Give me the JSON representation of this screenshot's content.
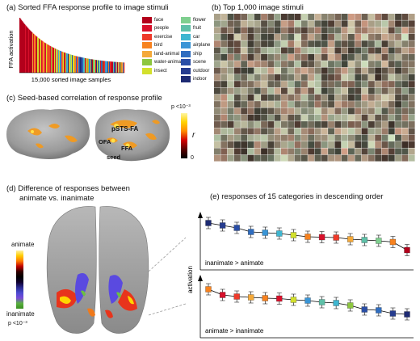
{
  "panel_a": {
    "title": "(a)  Sorted FFA response profile to image stimuli",
    "ylabel": "FFA activation",
    "xlabel": "15,000 sorted image samples",
    "legend": [
      {
        "label": "face",
        "color": "#b3001b"
      },
      {
        "label": "people",
        "color": "#d8102b"
      },
      {
        "label": "exercise",
        "color": "#ee3a2a"
      },
      {
        "label": "bird",
        "color": "#f7821f"
      },
      {
        "label": "land-animal",
        "color": "#f4a93a"
      },
      {
        "label": "water-animal",
        "color": "#8dc63f"
      },
      {
        "label": "insect",
        "color": "#d3e02c"
      },
      {
        "label": "flower",
        "color": "#7fcf8f"
      },
      {
        "label": "fruit",
        "color": "#5ec0a8"
      },
      {
        "label": "car",
        "color": "#3fb6d0"
      },
      {
        "label": "airplane",
        "color": "#3a95d6"
      },
      {
        "label": "ship",
        "color": "#2f6dc0"
      },
      {
        "label": "scene",
        "color": "#2a4ea6"
      },
      {
        "label": "outdoor",
        "color": "#263c8f"
      },
      {
        "label": "indoor",
        "color": "#1d2a73"
      }
    ]
  },
  "panel_b": {
    "title": "(b)  Top 1,000 image stimuli"
  },
  "panel_c": {
    "title": "(c)  Seed-based correlation of response profile",
    "colorbar_top": "p <10⁻³",
    "colorbar_r": "r",
    "colorbar_zero": "0",
    "labels": {
      "psts": "pSTS-FA",
      "ofa": "OFA",
      "ffa": "FFA",
      "seed": "seed"
    }
  },
  "panel_d": {
    "title_line1": "(d)  Difference of responses between",
    "title_line2": "animate vs. inanimate",
    "animate": "animate",
    "inanimate": "inanimate",
    "p": "p <10⁻³"
  },
  "panel_e": {
    "title": "(e)  responses of 15 categories in descending order",
    "ylabel": "activation",
    "top_label": "inanimate > animate",
    "bottom_label": "animate > inanimate",
    "top_colors": [
      "#1d2a73",
      "#263c8f",
      "#2a4ea6",
      "#2f6dc0",
      "#3a95d6",
      "#3fb6d0",
      "#d3e02c",
      "#f7821f",
      "#d8102b",
      "#ee3a2a",
      "#f4a93a",
      "#5ec0a8",
      "#7fcf8f",
      "#f7821f",
      "#b3001b"
    ],
    "top_values": [
      0.92,
      0.86,
      0.8,
      0.7,
      0.68,
      0.66,
      0.62,
      0.58,
      0.57,
      0.56,
      0.52,
      0.5,
      0.48,
      0.45,
      0.25
    ],
    "bottom_colors": [
      "#f7821f",
      "#d8102b",
      "#ee3a2a",
      "#f4a93a",
      "#f7821f",
      "#d8102b",
      "#d3e02c",
      "#3a95d6",
      "#5ec0a8",
      "#3fb6d0",
      "#8dc63f",
      "#2a4ea6",
      "#2f6dc0",
      "#263c8f",
      "#1d2a73"
    ],
    "bottom_values": [
      0.92,
      0.78,
      0.74,
      0.72,
      0.7,
      0.69,
      0.66,
      0.64,
      0.6,
      0.58,
      0.52,
      0.42,
      0.4,
      0.32,
      0.3
    ]
  }
}
